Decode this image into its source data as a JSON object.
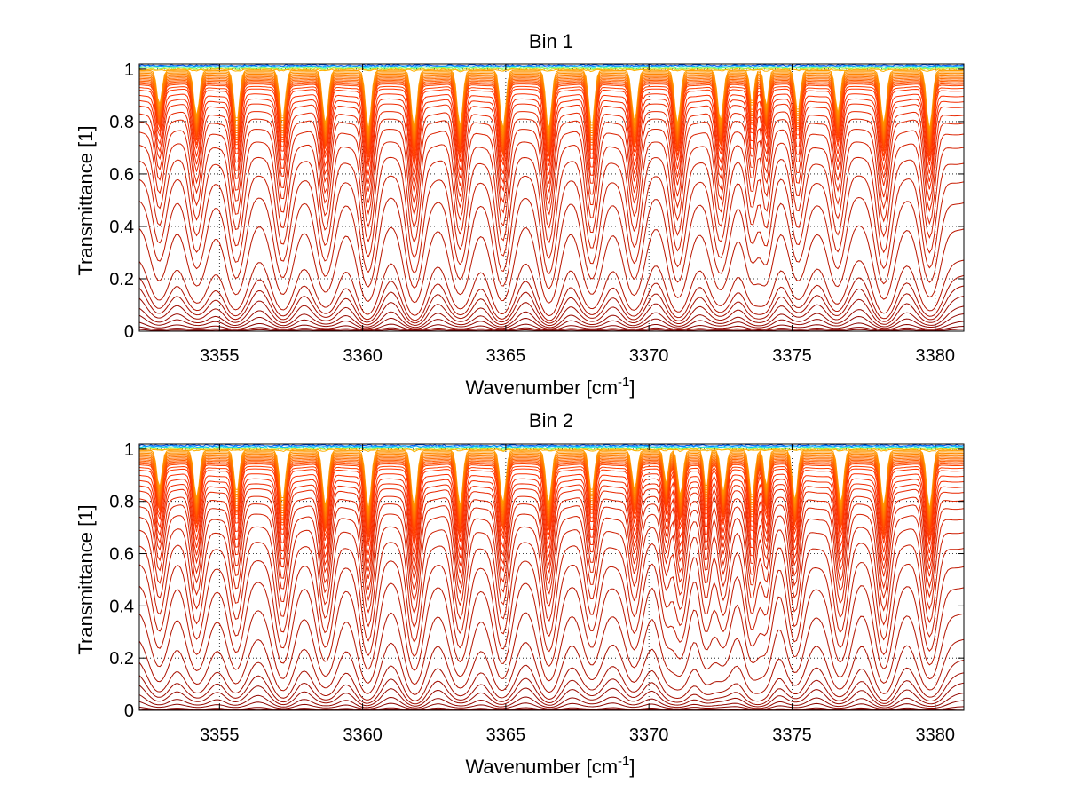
{
  "chart_data": [
    {
      "type": "line",
      "title": "Bin 1",
      "xlabel": "Wavenumber [cm",
      "xlabel_sup": "-1",
      "xlabel_end": "]",
      "ylabel": "Transmittance [1]",
      "xlim": [
        3352.2,
        3381.0
      ],
      "ylim": [
        0,
        1.02
      ],
      "xticks": [
        3355,
        3360,
        3365,
        3370,
        3375,
        3380
      ],
      "yticks": [
        0,
        0.2,
        0.4,
        0.6,
        0.8,
        1
      ],
      "ytick_labels": [
        "0",
        "0.2",
        "0.4",
        "0.6",
        "0.8",
        "1"
      ],
      "grid": true,
      "series_count": 40,
      "colormap": [
        "#00007f",
        "#0060ff",
        "#00d0ff",
        "#7fff7f",
        "#ffd000",
        "#ff3000",
        "#7f0000"
      ],
      "absorption_lines": [
        {
          "x": 3352.9,
          "depth": 0.55,
          "width": 0.12
        },
        {
          "x": 3354.2,
          "depth": 0.75,
          "width": 0.13
        },
        {
          "x": 3355.6,
          "depth": 0.85,
          "width": 0.13
        },
        {
          "x": 3357.2,
          "depth": 0.8,
          "width": 0.13
        },
        {
          "x": 3358.7,
          "depth": 0.9,
          "width": 0.13
        },
        {
          "x": 3360.2,
          "depth": 1.0,
          "width": 0.13
        },
        {
          "x": 3361.8,
          "depth": 1.0,
          "width": 0.13
        },
        {
          "x": 3363.4,
          "depth": 0.95,
          "width": 0.13
        },
        {
          "x": 3364.9,
          "depth": 1.0,
          "width": 0.13
        },
        {
          "x": 3366.5,
          "depth": 1.0,
          "width": 0.13
        },
        {
          "x": 3368.0,
          "depth": 0.95,
          "width": 0.13
        },
        {
          "x": 3369.5,
          "depth": 0.85,
          "width": 0.13
        },
        {
          "x": 3371.0,
          "depth": 0.9,
          "width": 0.13
        },
        {
          "x": 3372.5,
          "depth": 0.85,
          "width": 0.13
        },
        {
          "x": 3373.6,
          "depth": 0.55,
          "width": 0.1
        },
        {
          "x": 3374.1,
          "depth": 0.6,
          "width": 0.1
        },
        {
          "x": 3375.2,
          "depth": 0.65,
          "width": 0.12
        },
        {
          "x": 3376.6,
          "depth": 0.7,
          "width": 0.12
        },
        {
          "x": 3378.2,
          "depth": 0.9,
          "width": 0.13
        },
        {
          "x": 3379.8,
          "depth": 1.0,
          "width": 0.13
        }
      ],
      "continuum_levels": [
        0.995,
        0.99,
        0.985,
        0.98,
        0.975,
        0.97,
        0.965,
        0.96,
        0.955,
        0.95,
        0.945,
        0.94,
        0.93,
        0.92,
        0.9,
        0.88,
        0.86,
        0.83,
        0.8,
        0.76,
        0.71,
        0.65,
        0.58,
        0.5,
        0.4,
        0.28,
        0.22,
        0.18,
        0.14,
        0.1,
        0.07,
        0.04,
        0.02,
        0.008
      ]
    },
    {
      "type": "line",
      "title": "Bin 2",
      "xlabel": "Wavenumber [cm",
      "xlabel_sup": "-1",
      "xlabel_end": "]",
      "ylabel": "Transmittance [1]",
      "xlim": [
        3352.2,
        3381.0
      ],
      "ylim": [
        0,
        1.02
      ],
      "xticks": [
        3355,
        3360,
        3365,
        3370,
        3375,
        3380
      ],
      "yticks": [
        0,
        0.2,
        0.4,
        0.6,
        0.8,
        1
      ],
      "ytick_labels": [
        "0",
        "0.2",
        "0.4",
        "0.6",
        "0.8",
        "1"
      ],
      "grid": true,
      "series_count": 40,
      "colormap": [
        "#00007f",
        "#0060ff",
        "#00d0ff",
        "#7fff7f",
        "#ffd000",
        "#ff3000",
        "#7f0000"
      ],
      "absorption_lines": [
        {
          "x": 3352.9,
          "depth": 0.6,
          "width": 0.12
        },
        {
          "x": 3354.2,
          "depth": 0.8,
          "width": 0.13
        },
        {
          "x": 3355.6,
          "depth": 0.7,
          "width": 0.12
        },
        {
          "x": 3357.2,
          "depth": 0.85,
          "width": 0.13
        },
        {
          "x": 3358.7,
          "depth": 0.95,
          "width": 0.13
        },
        {
          "x": 3360.2,
          "depth": 1.0,
          "width": 0.13
        },
        {
          "x": 3361.8,
          "depth": 1.0,
          "width": 0.13
        },
        {
          "x": 3363.4,
          "depth": 0.95,
          "width": 0.13
        },
        {
          "x": 3364.9,
          "depth": 0.9,
          "width": 0.13
        },
        {
          "x": 3366.5,
          "depth": 0.9,
          "width": 0.13
        },
        {
          "x": 3368.0,
          "depth": 0.7,
          "width": 0.12
        },
        {
          "x": 3369.5,
          "depth": 0.65,
          "width": 0.12
        },
        {
          "x": 3370.6,
          "depth": 0.55,
          "width": 0.1
        },
        {
          "x": 3371.1,
          "depth": 0.75,
          "width": 0.12
        },
        {
          "x": 3372.0,
          "depth": 0.65,
          "width": 0.1
        },
        {
          "x": 3372.6,
          "depth": 0.7,
          "width": 0.12
        },
        {
          "x": 3373.6,
          "depth": 0.8,
          "width": 0.12
        },
        {
          "x": 3374.1,
          "depth": 0.6,
          "width": 0.1
        },
        {
          "x": 3375.1,
          "depth": 0.85,
          "width": 0.12
        },
        {
          "x": 3376.7,
          "depth": 0.9,
          "width": 0.13
        },
        {
          "x": 3378.2,
          "depth": 0.95,
          "width": 0.13
        },
        {
          "x": 3379.8,
          "depth": 1.0,
          "width": 0.13
        }
      ],
      "continuum_levels": [
        0.995,
        0.99,
        0.985,
        0.98,
        0.975,
        0.97,
        0.965,
        0.96,
        0.955,
        0.95,
        0.945,
        0.94,
        0.93,
        0.92,
        0.9,
        0.88,
        0.86,
        0.84,
        0.81,
        0.78,
        0.74,
        0.69,
        0.63,
        0.56,
        0.48,
        0.38,
        0.28,
        0.2,
        0.15,
        0.11,
        0.07,
        0.04,
        0.015,
        0.005
      ]
    }
  ]
}
